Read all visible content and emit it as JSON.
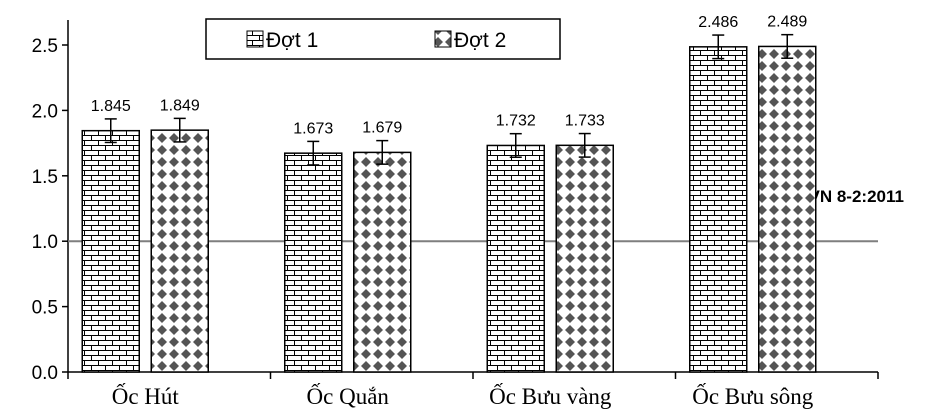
{
  "chart_data": {
    "type": "bar",
    "categories": [
      "Ốc Hút",
      "Ốc Quắn",
      "Ốc Bưu vàng",
      "Ốc Bưu sông"
    ],
    "series": [
      {
        "name": "Đợt 1",
        "values": [
          1.845,
          1.673,
          1.732,
          2.486
        ],
        "value_labels": [
          "1.845",
          "1.673",
          "1.732",
          "2.486"
        ],
        "pattern": "brick"
      },
      {
        "name": "Đợt 2",
        "values": [
          1.849,
          1.679,
          1.733,
          2.489
        ],
        "value_labels": [
          "1.849",
          "1.679",
          "1.733",
          "2.489"
        ],
        "pattern": "diamond"
      }
    ],
    "error": 0.09,
    "ylim": [
      0,
      2.5
    ],
    "yticks": [
      "0.0",
      "0.5",
      "1.0",
      "1.5",
      "2.0",
      "2.5"
    ],
    "reference_line": {
      "value": 1.0,
      "label": "QCVN 8-2:2011",
      "color": "#7f7f7f"
    },
    "legend": {
      "position": "top-center"
    },
    "grid": false
  }
}
